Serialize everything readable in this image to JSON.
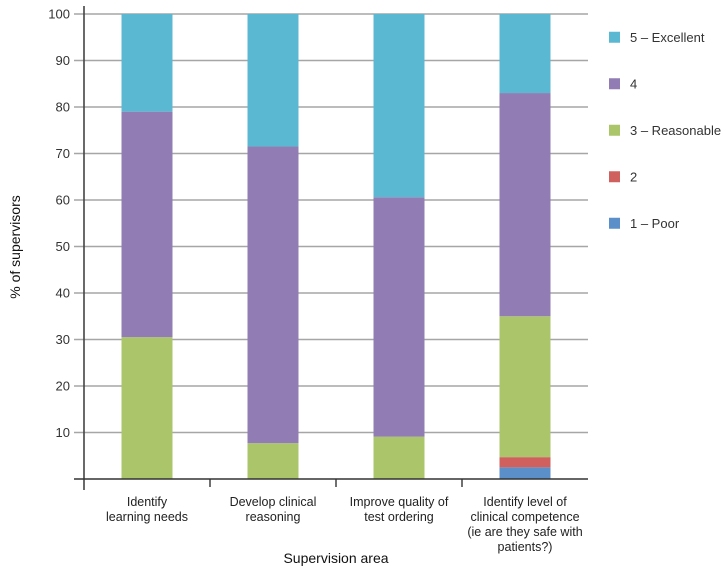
{
  "chart_data": {
    "type": "bar",
    "stacked": true,
    "title": "",
    "xlabel": "Supervision area",
    "ylabel": "% of supervisors",
    "ylim": [
      0,
      100
    ],
    "yticks": [
      10,
      20,
      30,
      40,
      50,
      60,
      70,
      80,
      90,
      100
    ],
    "grid": true,
    "legend_position": "right",
    "categories": [
      [
        "Identify",
        "learning needs"
      ],
      [
        "Develop clinical",
        "reasoning"
      ],
      [
        "Improve quality of",
        "test ordering"
      ],
      [
        "Identify level of",
        "clinical competence",
        "(ie are they safe with",
        "patients?)"
      ]
    ],
    "series": [
      {
        "name": "1 – Poor",
        "color": "#5b8fc9",
        "values": [
          0,
          0,
          0,
          2.5
        ]
      },
      {
        "name": "2",
        "color": "#d0605e",
        "values": [
          0,
          0,
          0,
          2.2
        ]
      },
      {
        "name": "3 – Reasonable",
        "color": "#abc56a",
        "values": [
          30.5,
          7.7,
          9.1,
          30.3
        ]
      },
      {
        "name": "4",
        "color": "#917db3",
        "values": [
          48.5,
          63.8,
          51.5,
          48.0
        ]
      },
      {
        "name": "5 – Excellent",
        "color": "#5bb8d2",
        "values": [
          21.0,
          28.5,
          39.4,
          17.0
        ]
      }
    ],
    "legend_order": [
      "5 – Excellent",
      "4",
      "3 – Reasonable",
      "2",
      "1 – Poor"
    ]
  }
}
